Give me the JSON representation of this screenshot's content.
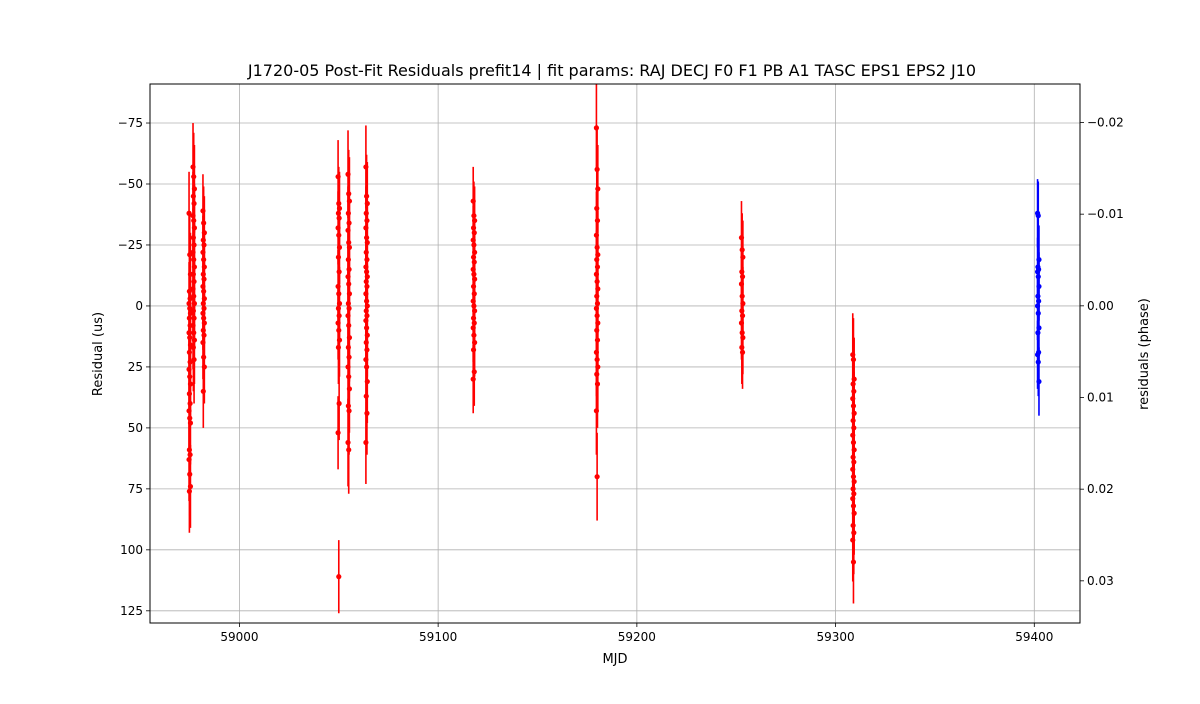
{
  "chart_data": {
    "type": "scatter",
    "title": "J1720-05 Post-Fit Residuals prefit14 | fit params: RAJ DECJ F0 F1 PB A1 TASC EPS1 EPS2 J10",
    "xlabel": "MJD",
    "ylabel": "Residual (us)",
    "y2label": "residuals (phase)",
    "xlim": [
      58955,
      59423
    ],
    "ylim": [
      130,
      -91
    ],
    "y2lim": [
      0.0346,
      -0.0242
    ],
    "y_inverted": true,
    "grid": true,
    "x_ticks": [
      59000,
      59100,
      59200,
      59300,
      59400
    ],
    "x_tick_labels": [
      "59000",
      "59100",
      "59200",
      "59300",
      "59400"
    ],
    "y_ticks": [
      -75,
      -50,
      -25,
      0,
      25,
      50,
      75,
      100,
      125
    ],
    "y_tick_labels": [
      "−75",
      "−50",
      "−25",
      "0",
      "25",
      "50",
      "75",
      "100",
      "125"
    ],
    "y2_ticks": [
      -0.02,
      -0.01,
      0.0,
      0.01,
      0.02,
      0.03
    ],
    "y2_tick_labels": [
      "−0.02",
      "−0.01",
      "0.00",
      "0.01",
      "0.02",
      "0.03"
    ],
    "series": [
      {
        "color": "#ff0000",
        "marker": "circle",
        "epochs": [
          {
            "mjd": 58975,
            "yerr": 17,
            "y": [
              -38,
              -21,
              -13,
              -6,
              -3,
              -1,
              1,
              3,
              5,
              8,
              11,
              13,
              16,
              19,
              23,
              26,
              29,
              32,
              36,
              40,
              43,
              46,
              48,
              59,
              61,
              63,
              69,
              74,
              76
            ]
          },
          {
            "mjd": 58977,
            "yerr": 18,
            "y": [
              -57,
              -53,
              -48,
              -45,
              -42,
              -37,
              -35,
              -32,
              -28,
              -25,
              -22,
              -19,
              -16,
              -13,
              -10,
              -7,
              -4,
              -1,
              2,
              5,
              8,
              11,
              14,
              17,
              22
            ]
          },
          {
            "mjd": 58982,
            "yerr": 15,
            "y": [
              -39,
              -34,
              -30,
              -27,
              -25,
              -22,
              -19,
              -16,
              -13,
              -11,
              -8,
              -6,
              -3,
              -1,
              1,
              3,
              5,
              7,
              10,
              12,
              15,
              21,
              25,
              35
            ]
          },
          {
            "mjd": 59050,
            "yerr": 15,
            "y": [
              -53,
              -42,
              -40,
              -38,
              -36,
              -32,
              -29,
              -24,
              -20,
              -14,
              -8,
              -5,
              -1,
              1,
              4,
              7,
              10,
              14,
              17,
              40,
              52,
              111
            ]
          },
          {
            "mjd": 59055,
            "yerr": 18,
            "y": [
              -54,
              -46,
              -43,
              -38,
              -34,
              -31,
              -26,
              -24,
              -19,
              -15,
              -12,
              -9,
              -5,
              -1,
              1,
              4,
              8,
              13,
              17,
              21,
              25,
              29,
              34,
              41,
              43,
              56,
              59
            ]
          },
          {
            "mjd": 59064,
            "yerr": 17,
            "y": [
              -57,
              -45,
              -42,
              -38,
              -35,
              -32,
              -28,
              -26,
              -22,
              -19,
              -16,
              -14,
              -12,
              -10,
              -8,
              -5,
              -2,
              0,
              2,
              4,
              6,
              9,
              12,
              15,
              18,
              22,
              25,
              31,
              37,
              44,
              56
            ]
          },
          {
            "mjd": 59118,
            "yerr": 14,
            "y": [
              -43,
              -37,
              -35,
              -32,
              -30,
              -27,
              -25,
              -22,
              -20,
              -18,
              -15,
              -13,
              -11,
              -8,
              -5,
              -2,
              0,
              2,
              5,
              7,
              9,
              12,
              15,
              18,
              27,
              30
            ]
          },
          {
            "mjd": 59180,
            "yerr": 18,
            "y": [
              -73,
              -56,
              -48,
              -40,
              -35,
              -29,
              -24,
              -21,
              -19,
              -16,
              -13,
              -10,
              -7,
              -4,
              -1,
              1,
              4,
              7,
              10,
              14,
              19,
              22,
              25,
              28,
              32,
              43,
              70
            ]
          },
          {
            "mjd": 59253,
            "yerr": 15,
            "y": [
              -28,
              -23,
              -20,
              -14,
              -12,
              -9,
              -4,
              -1,
              2,
              4,
              7,
              11,
              13,
              17,
              19
            ]
          },
          {
            "mjd": 59309,
            "yerr": 17,
            "y": [
              20,
              22,
              30,
              32,
              35,
              38,
              41,
              44,
              47,
              50,
              53,
              56,
              59,
              62,
              64,
              67,
              70,
              72,
              75,
              77,
              79,
              82,
              85,
              90,
              93,
              96,
              105
            ]
          }
        ]
      },
      {
        "color": "#0000ff",
        "marker": "circle",
        "epochs": [
          {
            "mjd": 59402,
            "yerr": 14,
            "y": [
              -38,
              -37,
              -19,
              -16,
              -15,
              -14,
              -12,
              -8,
              -4,
              -2,
              0,
              3,
              9,
              11,
              19,
              20,
              23,
              31
            ]
          }
        ]
      }
    ]
  }
}
